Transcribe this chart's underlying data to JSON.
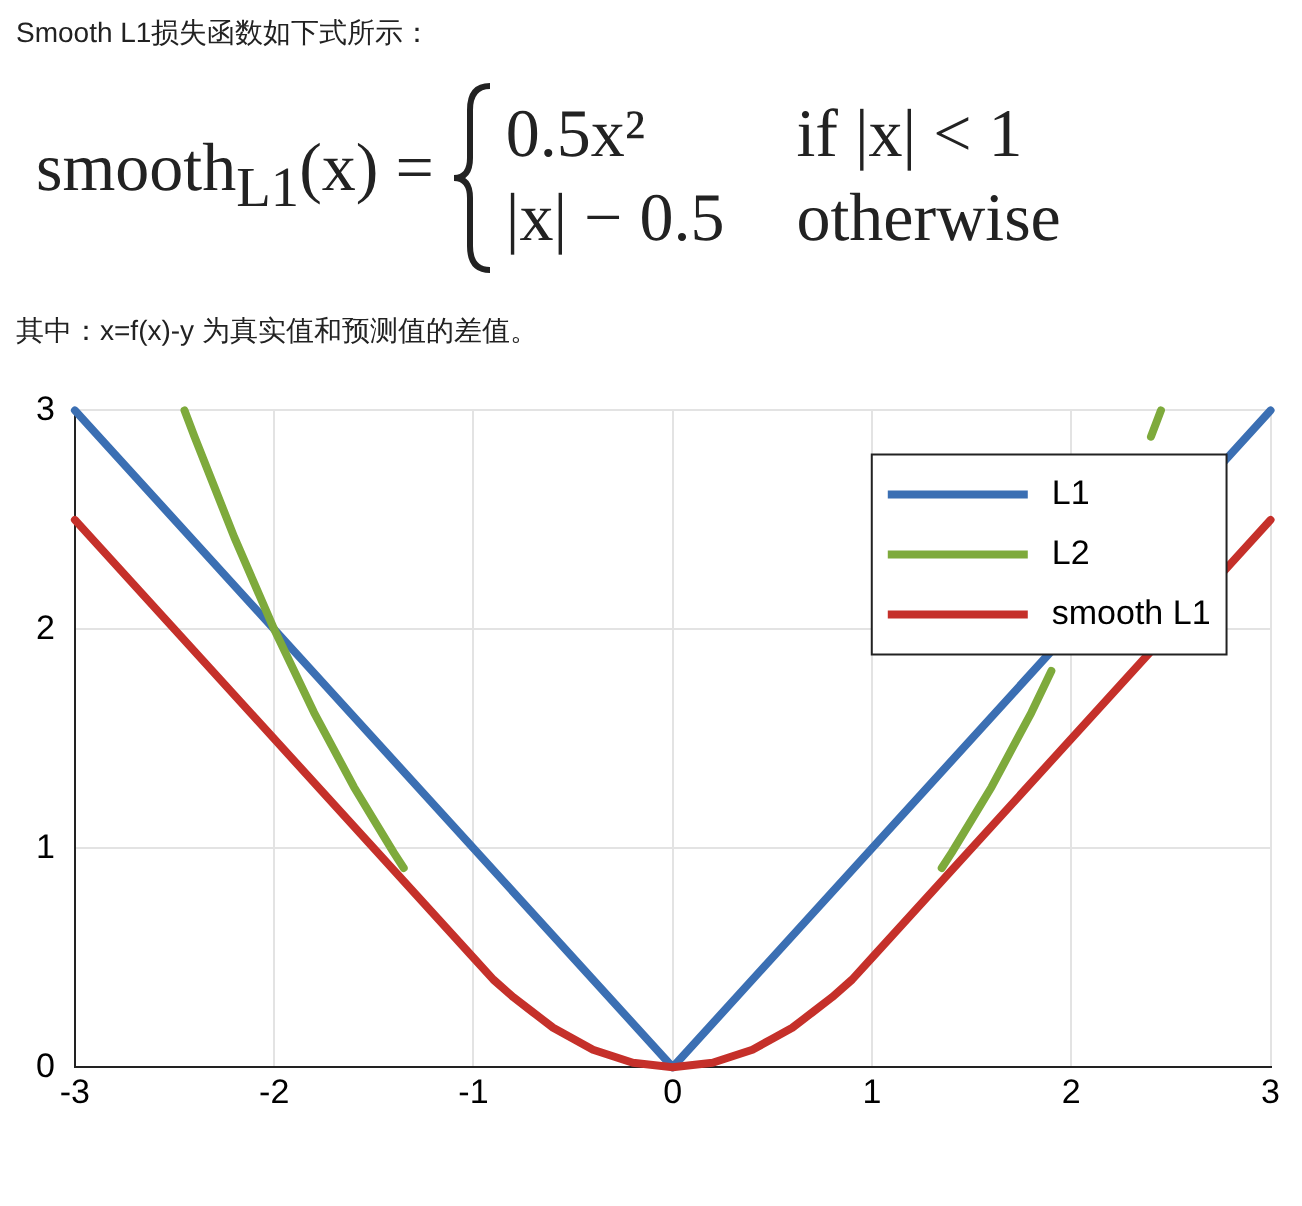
{
  "chart_data": {
    "type": "line",
    "title": "Smooth L1损失函数如下式所示：",
    "subtitle": "其中：x=f(x)-y 为真实值和预测值的差值。",
    "annotations": [
      "smooth$_{L1}$(x) =",
      "0.5x²",
      "if |x| < 1",
      "|x| − 0.5",
      "otherwise"
    ],
    "series": [
      {
        "name": "L1",
        "color": "#3b6fb3",
        "x": [
          -3,
          0,
          3
        ],
        "values": [
          3,
          0,
          3
        ]
      },
      {
        "name": "L2",
        "color": "#7eaa3c",
        "x": [
          -2.45,
          -2.4,
          -2.3,
          -2.2,
          -2.1,
          -2,
          -1.8,
          -1.6,
          -1.5,
          -1.4,
          -1.35,
          0,
          1.35,
          1.4,
          1.5,
          1.6,
          1.8,
          1.9,
          2,
          2.1,
          2.2,
          2.3,
          2.4,
          2.45
        ],
        "values": [
          3,
          2.88,
          2.65,
          2.42,
          2.21,
          2,
          1.62,
          1.28,
          1.13,
          0.98,
          0.91,
          null,
          0.91,
          0.98,
          1.13,
          1.28,
          1.62,
          1.81,
          null,
          null,
          null,
          null,
          2.88,
          3
        ]
      },
      {
        "name": "smooth L1",
        "color": "#c5302a",
        "x": [
          -3,
          -1,
          -0.9,
          -0.8,
          -0.7,
          -0.6,
          -0.5,
          -0.4,
          -0.3,
          -0.2,
          -0.1,
          0,
          0.1,
          0.2,
          0.3,
          0.4,
          0.5,
          0.6,
          0.7,
          0.8,
          0.9,
          1,
          3
        ],
        "values": [
          2.5,
          0.5,
          0.4,
          0.32,
          0.25,
          0.18,
          0.13,
          0.08,
          0.05,
          0.02,
          0.01,
          0,
          0.01,
          0.02,
          0.05,
          0.08,
          0.13,
          0.18,
          0.25,
          0.32,
          0.4,
          0.5,
          2.5
        ]
      }
    ],
    "xlim": [
      -3,
      3
    ],
    "ylim": [
      0,
      3
    ],
    "xticks": [
      -3,
      -2,
      -1,
      0,
      1,
      2,
      3
    ],
    "yticks": [
      0,
      1,
      2,
      3
    ],
    "grid": true,
    "legend": "top right",
    "marker": "none",
    "line_style": "solid"
  }
}
